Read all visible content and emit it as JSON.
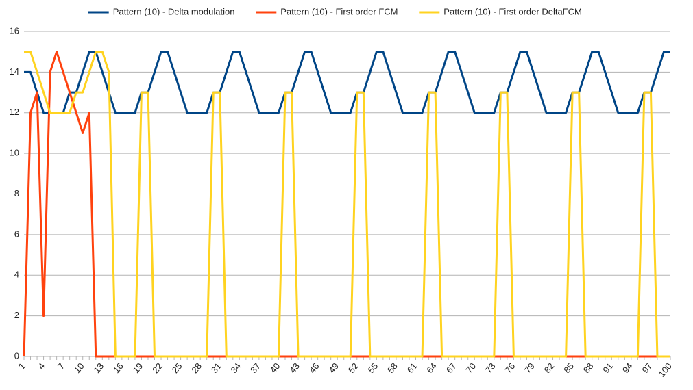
{
  "chart_data": {
    "type": "line",
    "categories": [
      "1",
      null,
      null,
      "4",
      null,
      null,
      "7",
      null,
      null,
      "10",
      null,
      null,
      "13",
      null,
      null,
      "16",
      null,
      null,
      "19",
      null,
      null,
      "22",
      null,
      null,
      "25",
      null,
      null,
      "28",
      null,
      null,
      "31",
      null,
      null,
      "34",
      null,
      null,
      "37",
      null,
      null,
      "40",
      null,
      null,
      "43",
      null,
      null,
      "46",
      null,
      null,
      "49",
      null,
      null,
      "52",
      null,
      null,
      "55",
      null,
      null,
      "58",
      null,
      null,
      "61",
      null,
      null,
      "64",
      null,
      null,
      "67",
      null,
      null,
      "70",
      null,
      null,
      "73",
      null,
      null,
      "76",
      null,
      null,
      "79",
      null,
      null,
      "82",
      null,
      null,
      "85",
      null,
      null,
      "88",
      null,
      null,
      "91",
      null,
      null,
      "94",
      null,
      null,
      "97",
      null,
      null,
      "100"
    ],
    "series": [
      {
        "name": "Pattern (10) - Delta modulation",
        "color": "#004586",
        "values": [
          14,
          14,
          13,
          12,
          12,
          12,
          12,
          13,
          13,
          14,
          15,
          15,
          14,
          13,
          12,
          12,
          12,
          12,
          13,
          13,
          14,
          15,
          15,
          14,
          13,
          12,
          12,
          12,
          12,
          13,
          13,
          14,
          15,
          15,
          14,
          13,
          12,
          12,
          12,
          12,
          13,
          13,
          14,
          15,
          15,
          14,
          13,
          12,
          12,
          12,
          12,
          13,
          13,
          14,
          15,
          15,
          14,
          13,
          12,
          12,
          12,
          12,
          13,
          13,
          14,
          15,
          15,
          14,
          13,
          12,
          12,
          12,
          12,
          13,
          13,
          14,
          15,
          15,
          14,
          13,
          12,
          12,
          12,
          12,
          13,
          13,
          14,
          15,
          15,
          14,
          13,
          12,
          12,
          12,
          12,
          13,
          13,
          14,
          15,
          15
        ]
      },
      {
        "name": "Pattern (10) - First order FCM",
        "color": "#ff420e",
        "values": [
          0,
          12,
          13,
          2,
          14,
          15,
          14,
          13,
          12,
          11,
          12,
          0,
          0,
          0,
          0,
          0,
          0,
          0,
          0,
          0,
          0,
          0,
          0,
          0,
          0,
          0,
          0,
          0,
          0,
          0,
          0,
          0,
          0,
          0,
          0,
          0,
          0,
          0,
          0,
          0,
          0,
          0,
          0,
          0,
          0,
          0,
          0,
          0,
          0,
          0,
          0,
          0,
          0,
          0,
          0,
          0,
          0,
          0,
          0,
          0,
          0,
          0,
          0,
          0,
          0,
          0,
          0,
          0,
          0,
          0,
          0,
          0,
          0,
          0,
          0,
          0,
          0,
          0,
          0,
          0,
          0,
          0,
          0,
          0,
          0,
          0,
          0,
          0,
          0,
          0,
          0,
          0,
          0,
          0,
          0,
          0,
          0,
          0,
          0,
          0
        ]
      },
      {
        "name": "Pattern (10) - First order DeltaFCM",
        "color": "#ffd320",
        "values": [
          15,
          15,
          14,
          13,
          12,
          12,
          12,
          12,
          13,
          13,
          14,
          15,
          15,
          14,
          0,
          0,
          0,
          0,
          13,
          13,
          0,
          0,
          0,
          0,
          0,
          0,
          0,
          0,
          0,
          13,
          13,
          0,
          0,
          0,
          0,
          0,
          0,
          0,
          0,
          0,
          13,
          13,
          0,
          0,
          0,
          0,
          0,
          0,
          0,
          0,
          0,
          13,
          13,
          0,
          0,
          0,
          0,
          0,
          0,
          0,
          0,
          0,
          13,
          13,
          0,
          0,
          0,
          0,
          0,
          0,
          0,
          0,
          0,
          13,
          13,
          0,
          0,
          0,
          0,
          0,
          0,
          0,
          0,
          0,
          13,
          13,
          0,
          0,
          0,
          0,
          0,
          0,
          0,
          0,
          0,
          13,
          13,
          0,
          0,
          0
        ]
      }
    ],
    "ylim": [
      0,
      16
    ],
    "yticks": [
      0,
      2,
      4,
      6,
      8,
      10,
      12,
      14,
      16
    ],
    "grid": true,
    "legend": "top"
  }
}
